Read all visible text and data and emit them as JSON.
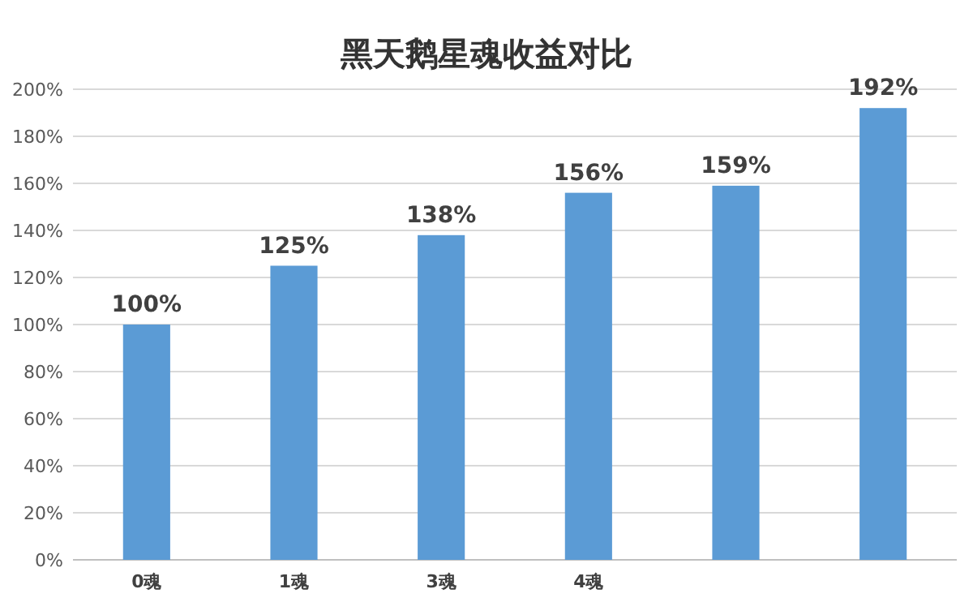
{
  "chart_data": {
    "type": "bar",
    "title": "黑天鹅星魂收益对比",
    "categories": [
      "0魂",
      "1魂",
      "3魂",
      "4魂",
      null,
      null
    ],
    "values": [
      100,
      125,
      138,
      156,
      159,
      192
    ],
    "value_labels": [
      "100%",
      "125%",
      "138%",
      "156%",
      "159%",
      "192%"
    ],
    "color": "#5b9bd5",
    "ylim": [
      0,
      200
    ],
    "yticks": [
      {
        "value": 0,
        "label": "0%"
      },
      {
        "value": 20,
        "label": "20%"
      },
      {
        "value": 40,
        "label": "40%"
      },
      {
        "value": 60,
        "label": "60%"
      },
      {
        "value": 80,
        "label": "80%"
      },
      {
        "value": 100,
        "label": "100%"
      },
      {
        "value": 120,
        "label": "120%"
      },
      {
        "value": 140,
        "label": "140%"
      },
      {
        "value": 160,
        "label": "160%"
      },
      {
        "value": 180,
        "label": "180%"
      },
      {
        "value": 200,
        "label": "200%"
      }
    ],
    "grid": "y"
  }
}
